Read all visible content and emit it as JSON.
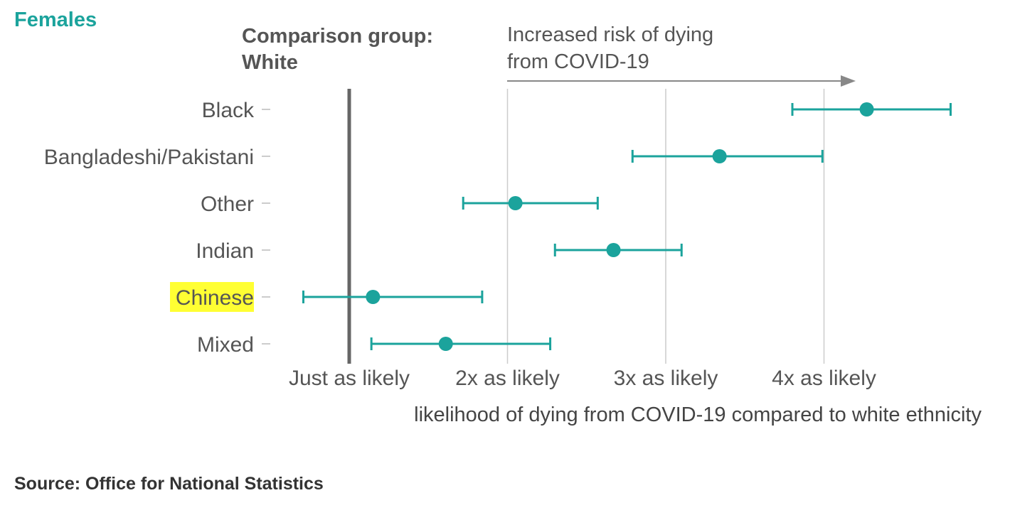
{
  "title": "Females",
  "comparison_label": [
    "Comparison group:",
    "White"
  ],
  "annotation": [
    "Increased risk of dying",
    "from COVID-19"
  ],
  "source": "Source: Office for National Statistics",
  "colors": {
    "accent": "#1ba39c",
    "highlight": "#ffff33",
    "reference_line": "#666666",
    "grid": "#cccccc",
    "text": "#555555"
  },
  "chart_data": {
    "type": "scatter",
    "subtype": "dot-with-error-bars",
    "categories": [
      "Black",
      "Bangladeshi/Pakistani",
      "Other",
      "Indian",
      "Chinese",
      "Mixed"
    ],
    "highlighted_category": "Chinese",
    "values": [
      4.27,
      3.34,
      2.05,
      2.67,
      1.15,
      1.61
    ],
    "lower": [
      3.8,
      2.79,
      1.72,
      2.3,
      0.71,
      1.14
    ],
    "upper": [
      4.8,
      3.99,
      2.57,
      3.1,
      1.84,
      2.27
    ],
    "xlabel": "likelihood of dying from COVID-19 compared to white ethnicity",
    "xticks": [
      {
        "value": 1,
        "label": "Just as likely"
      },
      {
        "value": 2,
        "label": "2x as likely"
      },
      {
        "value": 3,
        "label": "3x as likely"
      },
      {
        "value": 4,
        "label": "4x as likely"
      }
    ],
    "reference_value": 1,
    "grid": true,
    "xlim": [
      0.5,
      5.0
    ]
  }
}
